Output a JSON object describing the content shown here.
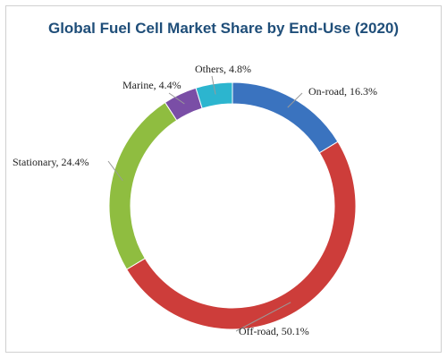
{
  "chart_data": {
    "type": "pie",
    "title": "Global Fuel Cell Market Share by End-Use (2020)",
    "slices": [
      {
        "label": "On-road",
        "value": 16.3,
        "value_label": "16.3%",
        "color": "#3a73bf"
      },
      {
        "label": "Off-road",
        "value": 50.1,
        "value_label": "50.1%",
        "color": "#cd3d3a"
      },
      {
        "label": "Stationary",
        "value": 24.4,
        "value_label": "24.4%",
        "color": "#8fbd40"
      },
      {
        "label": "Marine",
        "value": 4.4,
        "value_label": "4.4%",
        "color": "#7a4ea6"
      },
      {
        "label": "Others",
        "value": 4.8,
        "value_label": "4.8%",
        "color": "#2cb5cf"
      }
    ],
    "legend": "none"
  }
}
